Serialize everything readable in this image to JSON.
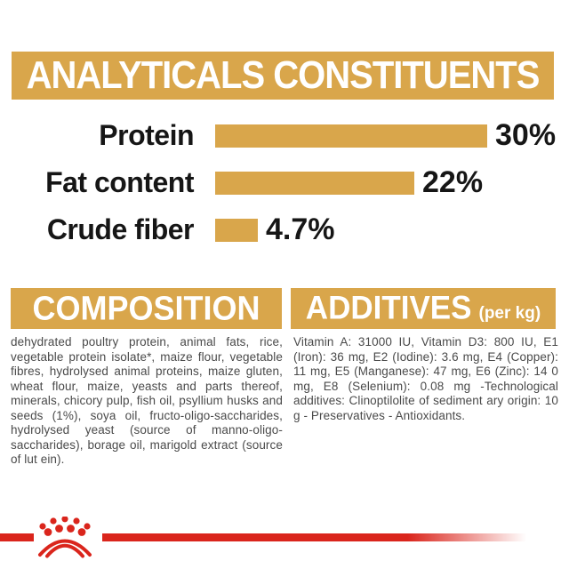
{
  "colors": {
    "gold": "#D9A64B",
    "red": "#DA251C",
    "body_text": "#4A4A4A",
    "chart_text": "#161616",
    "banner_text": "#FFFFFF",
    "background": "#FFFFFF"
  },
  "analytical": {
    "title": "ANALYTICALS CONSTITUENTS"
  },
  "chart_data": {
    "type": "bar",
    "orientation": "horizontal",
    "title": "ANALYTICALS CONSTITUENTS",
    "categories": [
      "Protein",
      "Fat content",
      "Crude fiber"
    ],
    "values": [
      30,
      22,
      4.7
    ],
    "value_labels": [
      "30%",
      "22%",
      "4.7%"
    ],
    "xlim": [
      0,
      30
    ],
    "bar_color": "#D9A64B",
    "grid": false,
    "legend": false
  },
  "composition": {
    "title": "COMPOSITION",
    "body": "dehydrated poultry protein, animal fats, rice, vegetable protein isolate*, maize flour, vegetable fibres, hydrolysed animal proteins, maize gluten, wheat flour, maize, yeasts and parts thereof, minerals, chicory pulp, fish oil, psyllium husks and seeds (1%), soya oil, fructo-oligo-saccharides, hydrolysed yeast (source of manno-oligo-saccharides), borage oil, marigold extract (source of lut ein)."
  },
  "additives": {
    "title": "ADDITIVES",
    "unit": "(per kg)",
    "body": "Vitamin A: 31000 IU, Vitamin D3: 800 IU, E1 (Iron): 36 mg, E2 (Iodine): 3.6 mg, E4 (Copper): 11 mg, E5 (Manganese): 47 mg, E6 (Zinc): 14 0 mg, E8 (Selenium): 0.08 mg -Technological additives: Clinoptilolite of sediment ary origin: 10 g - Preservatives - Antioxidants."
  },
  "footer": {
    "logo": "royal-canin-crown"
  }
}
